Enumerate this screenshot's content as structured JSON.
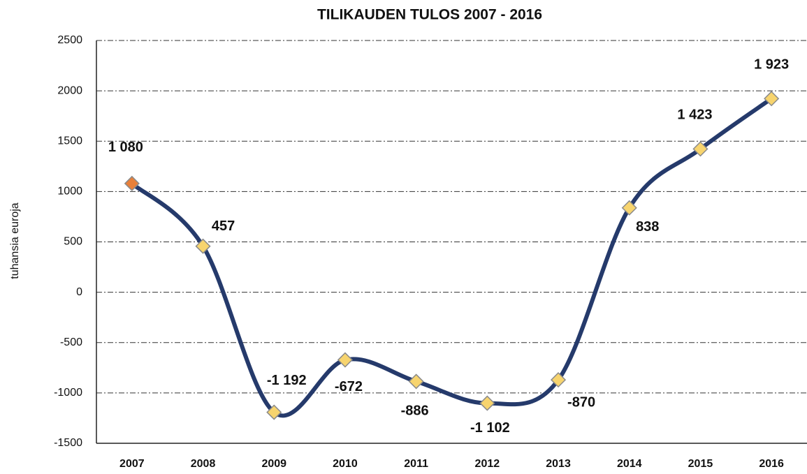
{
  "chart_data": {
    "type": "line",
    "title": "TILIKAUDEN  TULOS 2007  - 2016",
    "y_axis_label": "tuhansia euroja",
    "categories": [
      "2007",
      "2008",
      "2009",
      "2010",
      "2011",
      "2012",
      "2013",
      "2014",
      "2015",
      "2016"
    ],
    "series": [
      {
        "name": "Tilikauden tulos",
        "color": "#253a6b",
        "values": [
          1080,
          457,
          -1192,
          -672,
          -886,
          -1102,
          -870,
          838,
          1423,
          1923
        ],
        "value_labels": [
          "1 080",
          "457",
          "-1 192",
          "-672",
          "-886",
          "-1 102",
          "-870",
          "838",
          "1 423",
          "1 923"
        ],
        "marker_colors": [
          "#e8803a",
          "#f7d46e",
          "#f7d46e",
          "#f7d46e",
          "#f7d46e",
          "#f7d46e",
          "#f7d46e",
          "#f7d46e",
          "#f7d46e",
          "#f7d46e"
        ]
      }
    ],
    "ylim": [
      -1500,
      2500
    ],
    "yticks": [
      -1500,
      -1000,
      -500,
      0,
      500,
      1000,
      1500,
      2000,
      2500
    ],
    "grid": true,
    "smooth": true
  }
}
